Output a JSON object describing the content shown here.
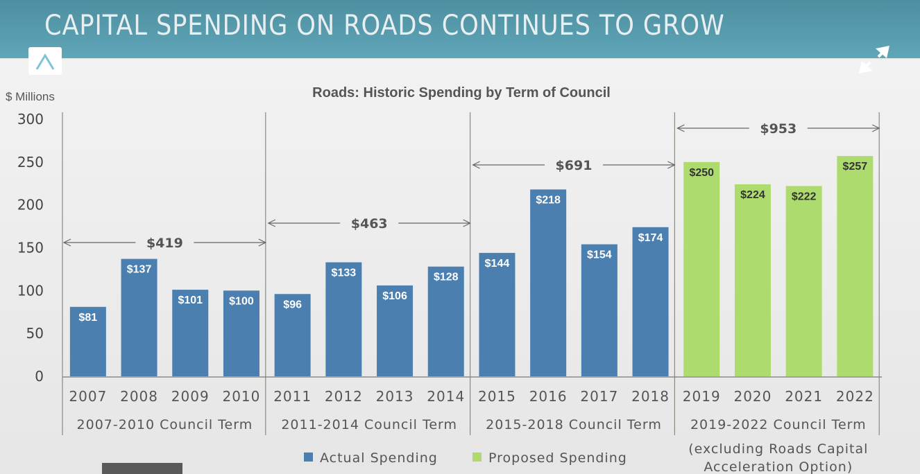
{
  "banner": {
    "title": "CAPITAL SPENDING ON ROADS CONTINUES TO GROW"
  },
  "viewer": {
    "up_icon": "chevron-up-icon",
    "expand_icon": "expand-arrows-icon"
  },
  "colors": {
    "actual": "#4a7fb0",
    "proposed": "#addb6e",
    "banner": "#5299ab"
  },
  "chart_data": {
    "type": "bar",
    "title": "Roads: Historic Spending by Term of Council",
    "ylabel": "$ Millions",
    "ylim": [
      0,
      300
    ],
    "yticks": [
      "0",
      "50",
      "100",
      "150",
      "200",
      "250",
      "300"
    ],
    "categories": [
      "2007",
      "2008",
      "2009",
      "2010",
      "2011",
      "2012",
      "2013",
      "2014",
      "2015",
      "2016",
      "2017",
      "2018",
      "2019",
      "2020",
      "2021",
      "2022"
    ],
    "series": [
      {
        "name": "Actual Spending",
        "values": [
          81,
          137,
          101,
          100,
          96,
          133,
          106,
          128,
          144,
          218,
          154,
          174,
          null,
          null,
          null,
          null
        ]
      },
      {
        "name": "Proposed Spending",
        "values": [
          null,
          null,
          null,
          null,
          null,
          null,
          null,
          null,
          null,
          null,
          null,
          null,
          250,
          224,
          222,
          257
        ]
      }
    ],
    "data_labels": [
      "$81",
      "$137",
      "$101",
      "$100",
      "$96",
      "$133",
      "$106",
      "$128",
      "$144",
      "$218",
      "$154",
      "$174",
      "$250",
      "$224",
      "$222",
      "$257"
    ],
    "terms": [
      {
        "name": "2007-2010 Council Term",
        "total": "$419",
        "total_value": 419
      },
      {
        "name": "2011-2014 Council Term",
        "total": "$463",
        "total_value": 463
      },
      {
        "name": "2015-2018 Council Term",
        "total": "$691",
        "total_value": 691
      },
      {
        "name": "2019-2022 Council Term",
        "total": "$953",
        "total_value": 953
      }
    ],
    "term_note": [
      "(excluding Roads Capital",
      "Acceleration Option)"
    ],
    "legend": [
      "Actual Spending",
      "Proposed Spending"
    ],
    "legend_position": "bottom",
    "grid": false
  }
}
